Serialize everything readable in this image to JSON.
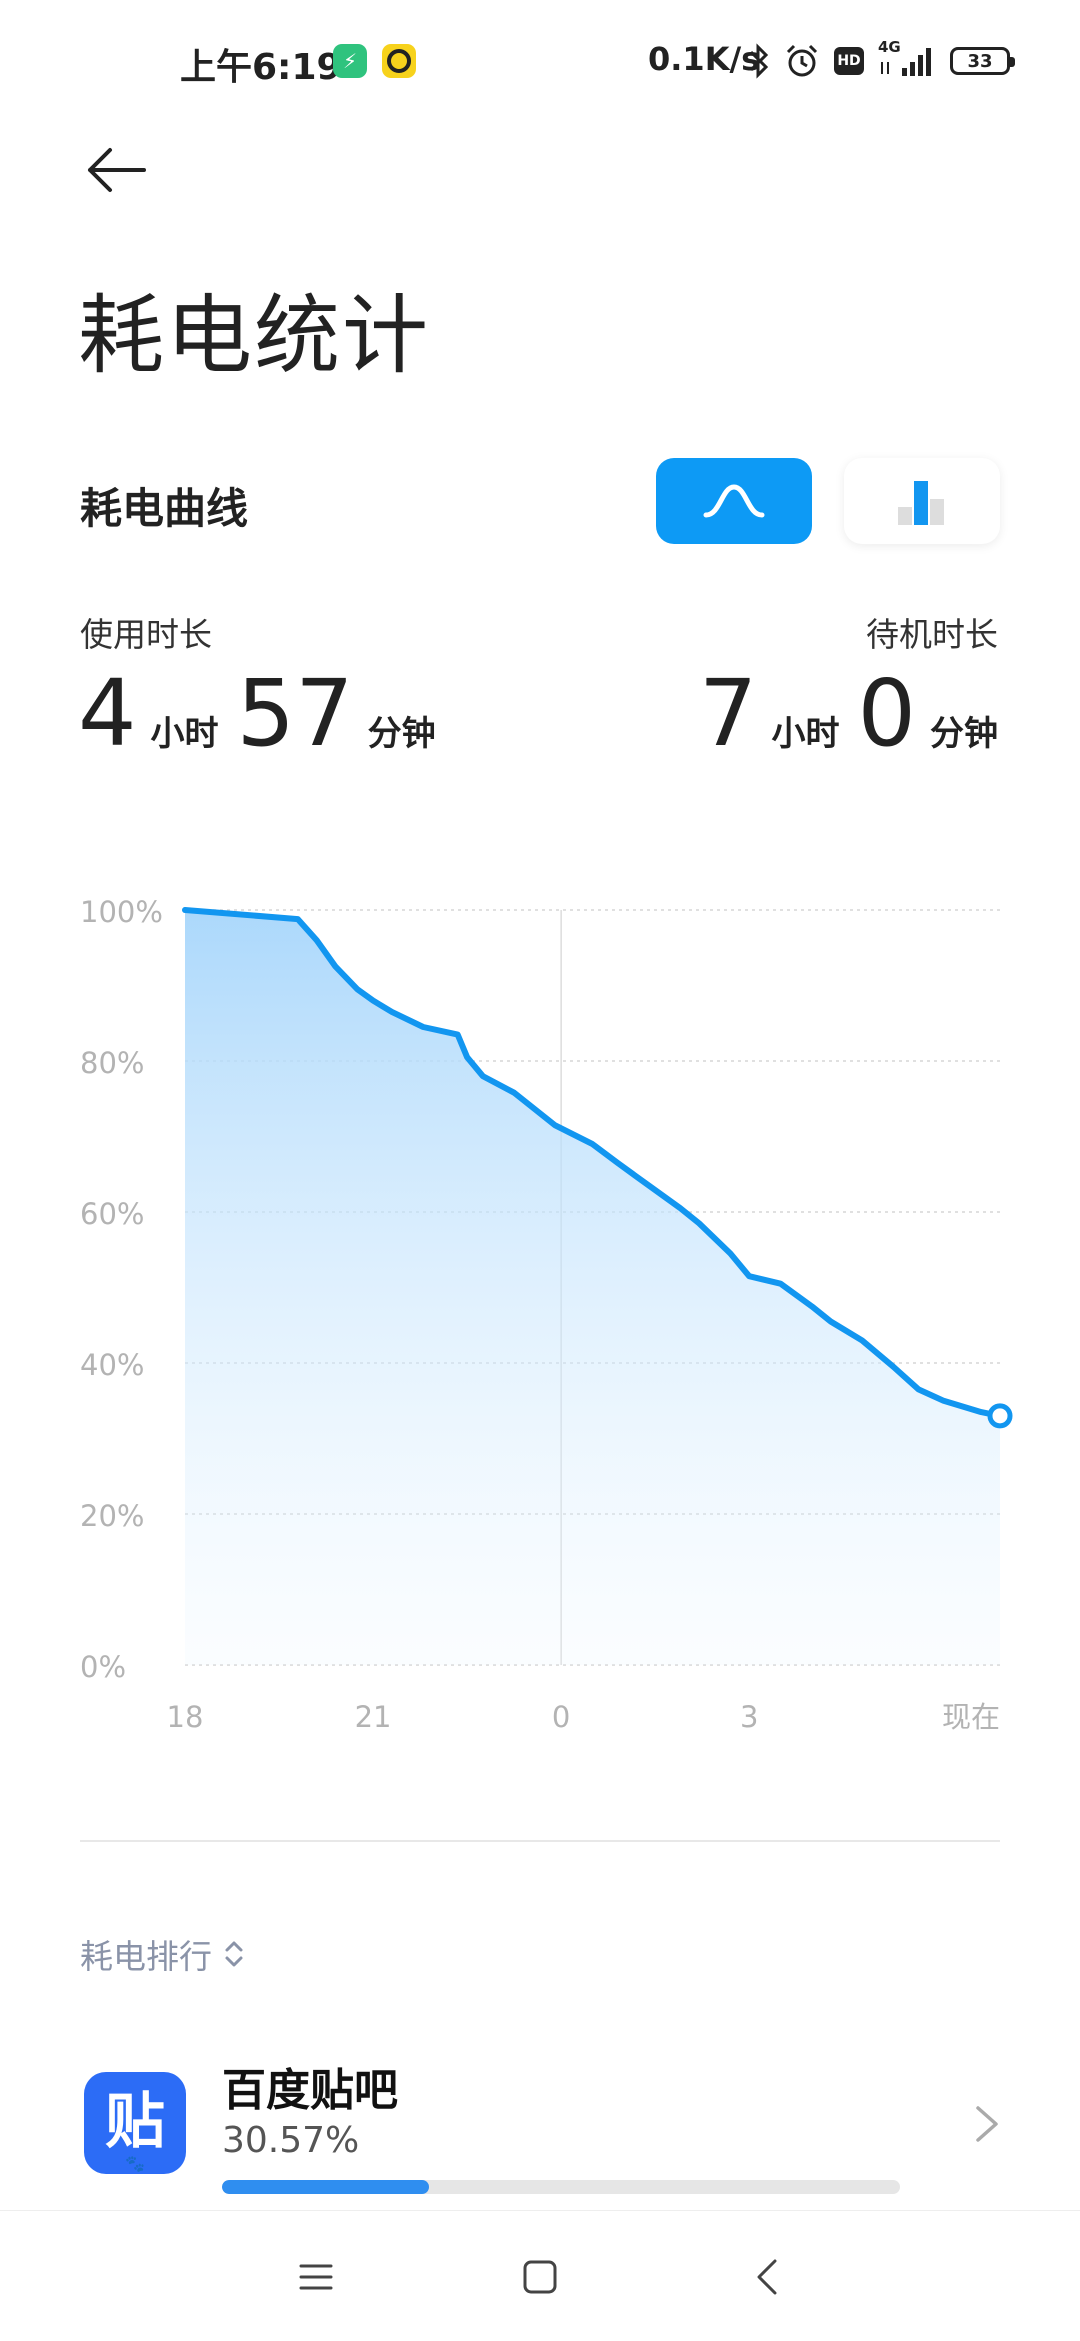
{
  "status_bar": {
    "time": "上午6:19",
    "network_speed": "0.1K/s",
    "battery_level": "33",
    "network_type": "4G",
    "hd_label": "HD"
  },
  "page": {
    "title": "耗电统计"
  },
  "curve_section": {
    "title": "耗电曲线"
  },
  "usage": {
    "usage_label": "使用时长",
    "usage_hours": "4",
    "hour_unit": "小时",
    "usage_minutes": "57",
    "minute_unit": "分钟",
    "standby_label": "待机时长",
    "standby_hours": "7",
    "standby_minutes": "0"
  },
  "chart_data": {
    "type": "area",
    "title": "",
    "xlabel": "",
    "ylabel": "",
    "y_ticks": [
      "100%",
      "80%",
      "60%",
      "40%",
      "20%",
      "0%"
    ],
    "x_ticks": [
      "18",
      "21",
      "0",
      "3",
      "现在"
    ],
    "x_tick_hours": [
      0,
      3,
      6,
      9,
      13
    ],
    "ylim": [
      0,
      100
    ],
    "grid": true,
    "series": [
      {
        "x": [
          0,
          1.8,
          2.1,
          2.4,
          2.75,
          3.0,
          3.3,
          3.8,
          4.35,
          4.5,
          4.75,
          5.25,
          5.9,
          6.5,
          6.9,
          7.4,
          7.9,
          8.2,
          8.7,
          9.0,
          9.5,
          10.0,
          10.3,
          10.8,
          11.3,
          11.7,
          12.1,
          12.7,
          13.0
        ],
        "y": [
          100,
          98.8,
          96,
          92.5,
          89.5,
          88,
          86.5,
          84.5,
          83.5,
          80.5,
          78,
          75.8,
          71.5,
          69,
          66.5,
          63.5,
          60.5,
          58.5,
          54.5,
          51.5,
          50.5,
          47.5,
          45.5,
          43,
          39.5,
          36.5,
          35,
          33.5,
          33
        ]
      }
    ],
    "colors": {
      "line": "#1296f0",
      "fill_top": "#a7d6fb"
    }
  },
  "ranking": {
    "title": "耗电排行",
    "apps": [
      {
        "name": "百度贴吧",
        "percent": "30.57%",
        "share": 0.3057,
        "icon_char": "贴",
        "icon_color": "#2c6cf6"
      }
    ]
  },
  "navigation": {
    "buttons": [
      "menu-icon",
      "home-icon",
      "back-icon"
    ]
  }
}
